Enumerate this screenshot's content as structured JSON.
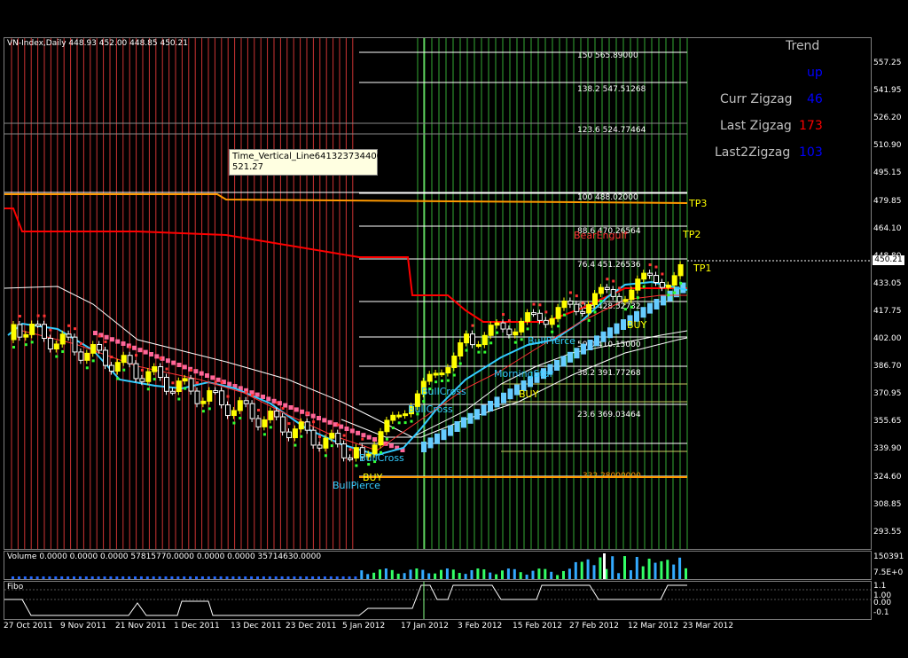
{
  "chart_header": {
    "symbol_label": "VN-Index,Daily",
    "ohlc_label": "448.93 452.00 448.85 450.21"
  },
  "current_price": "450.21",
  "trend_panel": {
    "title": "Trend",
    "direction": "up",
    "curr_zigzag_label": "Curr Zigzag",
    "curr_zigzag_value": "46",
    "last_zigzag_label": "Last Zigzag",
    "last_zigzag_value": "173",
    "last2_zigzag_label": "Last2Zigzag",
    "last2_zigzag_value": "103"
  },
  "tooltip": {
    "name": "Time_Vertical_Line641323734400",
    "value": "521.27"
  },
  "fib_levels": [
    {
      "label": "150    565.89000"
    },
    {
      "label": "138.2   547.51268"
    },
    {
      "label": "123.6   524.77464"
    },
    {
      "label": "100    488.02000"
    },
    {
      "label": "88.6   470.26564"
    },
    {
      "label": "76.4   451.26536"
    },
    {
      "label": "61.8   428.52732"
    },
    {
      "label": "50.0   410.15000"
    },
    {
      "label": "38.2   391.77268"
    },
    {
      "label": "23.6   369.03464"
    },
    {
      "label": "332.28000000"
    }
  ],
  "annotations": {
    "tp1": "TP1",
    "tp2": "TP2",
    "tp3": "TP3",
    "buy": "BUY",
    "bull_cross": "BullCross",
    "bull_pierce": "BullPierce",
    "morning_star": "MorningStar",
    "bear_engulf": "BearEngulf"
  },
  "volume_pane": {
    "label": "Volume 0.0000 0.0000 0.0000 57815770.0000 0.0000 0.0000 35714630.0000",
    "max_label": "150391",
    "min_label": "7.5E+0"
  },
  "fibo_pane": {
    "label": "Fibo",
    "ticks": [
      "1.1",
      "1.00",
      "0.00",
      "-0.1"
    ]
  },
  "y_axis_ticks": [
    "557.25",
    "541.95",
    "526.20",
    "510.90",
    "495.15",
    "479.85",
    "464.10",
    "448.80",
    "433.05",
    "417.75",
    "402.00",
    "386.70",
    "370.95",
    "355.65",
    "339.90",
    "324.60",
    "308.85",
    "293.55"
  ],
  "x_axis_ticks": [
    "27 Oct 2011",
    "9 Nov 2011",
    "21 Nov 2011",
    "1 Dec 2011",
    "13 Dec 2011",
    "23 Dec 2011",
    "5 Jan 2012",
    "17 Jan 2012",
    "3 Feb 2012",
    "15 Feb 2012",
    "27 Feb 2012",
    "12 Mar 2012",
    "23 Mar 2012"
  ],
  "colors": {
    "background": "#000000",
    "bull_candle": "#ffff00",
    "bear_candle": "#ffffff",
    "fib_line": "#ffffff",
    "orange_line": "#ff9900",
    "red_line": "#ff0000",
    "cyan_line": "#33ccff",
    "pink_dots": "#ff6699",
    "kumo": "#66ccff",
    "red_zone": "#cc3333",
    "green_zone": "#33aa33"
  }
}
